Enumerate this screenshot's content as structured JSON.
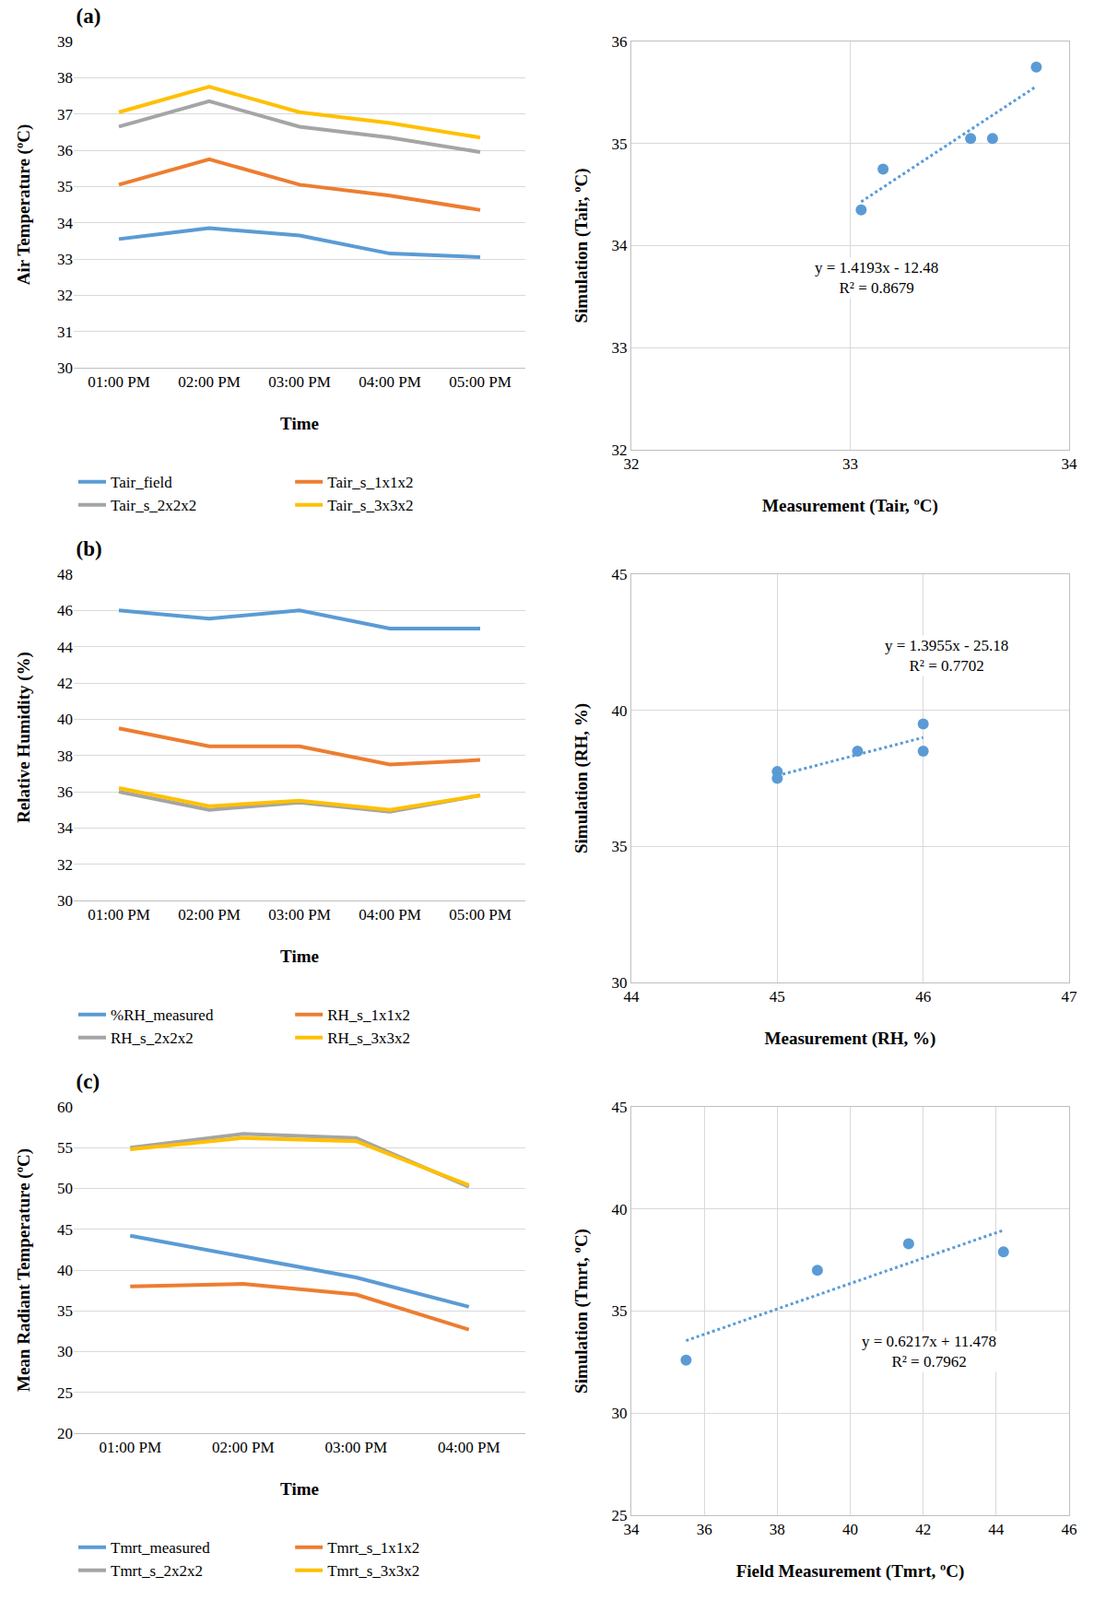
{
  "chart_data": [
    {
      "type": "line",
      "title": "(a)",
      "x_label": "Time",
      "y_label": "Air Temperature (ºC)",
      "categories": [
        "01:00 PM",
        "02:00 PM",
        "03:00 PM",
        "04:00 PM",
        "05:00 PM"
      ],
      "series": [
        {
          "name": "Tair_field",
          "color": "#5b9bd5",
          "values": [
            33.55,
            33.85,
            33.65,
            33.15,
            33.05
          ]
        },
        {
          "name": "Tair_s_1x1x2",
          "color": "#ed7d31",
          "values": [
            35.05,
            35.75,
            35.05,
            34.75,
            34.35
          ]
        },
        {
          "name": "Tair_s_2x2x2",
          "color": "#a5a5a5",
          "values": [
            36.65,
            37.35,
            36.65,
            36.35,
            35.95
          ]
        },
        {
          "name": "Tair_s_3x3x2",
          "color": "#ffc000",
          "values": [
            37.05,
            37.75,
            37.05,
            36.75,
            36.35
          ]
        }
      ],
      "ylim": [
        30,
        39
      ],
      "yticks": [
        30,
        31,
        32,
        33,
        34,
        35,
        36,
        37,
        38,
        39
      ],
      "grid": true,
      "legend": "bottom"
    },
    {
      "type": "scatter",
      "x_label": "Measurement (Tair, ºC)",
      "y_label": "Simulation (Tair, ºC)",
      "x": [
        33.05,
        33.15,
        33.55,
        33.65,
        33.85
      ],
      "values": [
        34.35,
        34.75,
        35.05,
        35.05,
        35.75
      ],
      "color": "#5b9bd5",
      "marker": "circle",
      "trendline": {
        "x": [
          33.05,
          33.85
        ],
        "y": [
          34.43,
          35.56
        ],
        "line_style": "dotted"
      },
      "annotations": [
        "y = 1.4193x - 12.48",
        "R² = 0.8679"
      ],
      "xlim": [
        32,
        34
      ],
      "xticks": [
        32,
        33,
        34
      ],
      "ylim": [
        32,
        36
      ],
      "yticks": [
        32,
        33,
        34,
        35,
        36
      ],
      "grid": true
    },
    {
      "type": "line",
      "title": "(b)",
      "x_label": "Time",
      "y_label": "Relative Humidity (%)",
      "categories": [
        "01:00 PM",
        "02:00 PM",
        "03:00 PM",
        "04:00 PM",
        "05:00 PM"
      ],
      "series": [
        {
          "name": "%RH_measured",
          "color": "#5b9bd5",
          "values": [
            46,
            45.55,
            46,
            45,
            45
          ]
        },
        {
          "name": "RH_s_1x1x2",
          "color": "#ed7d31",
          "values": [
            39.5,
            38.5,
            38.5,
            37.5,
            37.75
          ]
        },
        {
          "name": "RH_s_2x2x2",
          "color": "#a5a5a5",
          "values": [
            36,
            35,
            35.4,
            34.9,
            35.8
          ]
        },
        {
          "name": "RH_s_3x3x2",
          "color": "#ffc000",
          "values": [
            36.2,
            35.2,
            35.5,
            35,
            35.8
          ]
        }
      ],
      "ylim": [
        30,
        48
      ],
      "yticks": [
        30,
        32,
        34,
        36,
        38,
        40,
        42,
        44,
        46,
        48
      ],
      "grid": true,
      "legend": "bottom"
    },
    {
      "type": "scatter",
      "x_label": "Measurement (RH, %)",
      "y_label": "Simulation (RH, %)",
      "x": [
        46,
        45.55,
        46,
        45,
        45
      ],
      "values": [
        39.5,
        38.5,
        38.5,
        37.5,
        37.75
      ],
      "color": "#5b9bd5",
      "marker": "circle",
      "trendline": {
        "x": [
          45,
          46
        ],
        "y": [
          37.6,
          39.0
        ],
        "line_style": "dotted"
      },
      "annotations": [
        "y = 1.3955x - 25.18",
        "R² = 0.7702"
      ],
      "xlim": [
        44,
        47
      ],
      "xticks": [
        44,
        45,
        46,
        47
      ],
      "ylim": [
        30,
        45
      ],
      "yticks": [
        30,
        35,
        40,
        45
      ],
      "grid": true
    },
    {
      "type": "line",
      "title": "(c)",
      "x_label": "Time",
      "y_label": "Mean Radiant Temperature (ºC)",
      "categories": [
        "01:00 PM",
        "02:00 PM",
        "03:00 PM",
        "04:00 PM"
      ],
      "series": [
        {
          "name": "Tmrt_measured",
          "color": "#5b9bd5",
          "values": [
            44.2,
            41.6,
            39.1,
            35.5
          ]
        },
        {
          "name": "Tmrt_s_1x1x2",
          "color": "#ed7d31",
          "values": [
            38,
            38.3,
            37,
            32.7
          ]
        },
        {
          "name": "Tmrt_s_2x2x2",
          "color": "#a5a5a5",
          "values": [
            55,
            56.7,
            56.2,
            50.2
          ]
        },
        {
          "name": "Tmrt_s_3x3x2",
          "color": "#ffc000",
          "values": [
            54.8,
            56.2,
            55.8,
            50.4
          ]
        }
      ],
      "ylim": [
        20,
        60
      ],
      "yticks": [
        20,
        25,
        30,
        35,
        40,
        45,
        50,
        55,
        60
      ],
      "grid": true,
      "legend": "bottom"
    },
    {
      "type": "scatter",
      "x_label": "Field Measurement (Tmrt, ºC)",
      "y_label": "Simulation (Tmrt, ºC)",
      "x": [
        35.5,
        39.1,
        41.6,
        44.2
      ],
      "values": [
        32.6,
        37,
        38.3,
        37.9
      ],
      "color": "#5b9bd5",
      "marker": "circle",
      "trendline": {
        "x": [
          35.5,
          44.2
        ],
        "y": [
          33.55,
          38.96
        ],
        "line_style": "dotted"
      },
      "annotations": [
        "y = 0.6217x + 11.478",
        "R² = 0.7962"
      ],
      "xlim": [
        34,
        46
      ],
      "xticks": [
        34,
        36,
        38,
        40,
        42,
        44,
        46
      ],
      "ylim": [
        25,
        45
      ],
      "yticks": [
        25,
        30,
        35,
        40,
        45
      ],
      "grid": true
    }
  ]
}
